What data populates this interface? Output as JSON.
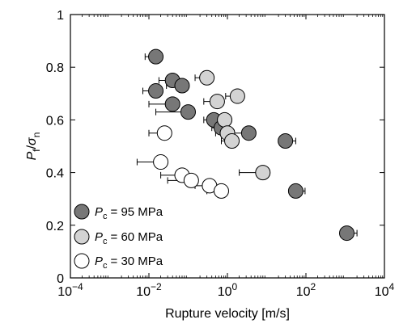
{
  "chart_data": {
    "type": "scatter",
    "xlabel": "Rupture velocity [m/s]",
    "ylabel": {
      "main": "P",
      "sub1": "f",
      "sep": "/",
      "sigma": "σ",
      "sub2": "n"
    },
    "x_scale": "log",
    "xlim": [
      0.0001,
      10000
    ],
    "ylim": [
      0,
      1
    ],
    "x_ticks": [
      {
        "value": 0.0001,
        "base": "10",
        "exp": "−4"
      },
      {
        "value": 0.01,
        "base": "10",
        "exp": "−2"
      },
      {
        "value": 1,
        "base": "10",
        "exp": "0"
      },
      {
        "value": 100,
        "base": "10",
        "exp": "2"
      },
      {
        "value": 10000,
        "base": "10",
        "exp": "4"
      }
    ],
    "y_ticks": [
      "0",
      "0.2",
      "0.4",
      "0.6",
      "0.8",
      "1"
    ],
    "grid": false,
    "legend_position": "bottom-left",
    "series": [
      {
        "name": "= 95 MPa",
        "legend_prefix": "P",
        "legend_sub": "c",
        "color": "#777777",
        "points": [
          {
            "x": 0.015,
            "y": 0.84,
            "x_err_low": 0.007
          },
          {
            "x": 0.015,
            "y": 0.71,
            "x_err_low": 0.008
          },
          {
            "x": 0.04,
            "y": 0.75,
            "x_err_low": 0.022
          },
          {
            "x": 0.07,
            "y": 0.73,
            "x_err_low": 0.042
          },
          {
            "x": 0.04,
            "y": 0.66,
            "x_err_low": 0.03
          },
          {
            "x": 0.1,
            "y": 0.63,
            "x_err_low": 0.085
          },
          {
            "x": 0.45,
            "y": 0.6,
            "x_err_low": 0.2
          },
          {
            "x": 0.7,
            "y": 0.57,
            "x_err_low": 0.3
          },
          {
            "x": 3.5,
            "y": 0.55,
            "x_err_low": 2.0
          },
          {
            "x": 30,
            "y": 0.52,
            "x_err_high": 25
          },
          {
            "x": 55,
            "y": 0.33,
            "x_err_high": 40
          },
          {
            "x": 1100,
            "y": 0.17,
            "x_err_high": 900
          }
        ]
      },
      {
        "name": "= 60 MPa",
        "legend_prefix": "P",
        "legend_sub": "c",
        "color": "#d3d3d3",
        "points": [
          {
            "x": 0.3,
            "y": 0.76,
            "x_err_low": 0.15
          },
          {
            "x": 0.55,
            "y": 0.67,
            "x_err_low": 0.3
          },
          {
            "x": 1.8,
            "y": 0.69,
            "x_err_low": 0.9
          },
          {
            "x": 0.85,
            "y": 0.6,
            "x_err_low": 0.4
          },
          {
            "x": 1.0,
            "y": 0.55,
            "x_err_low": 0.5
          },
          {
            "x": 1.3,
            "y": 0.52,
            "x_err_low": 0.6
          },
          {
            "x": 8,
            "y": 0.4,
            "x_err_low": 6
          }
        ]
      },
      {
        "name": "= 30 MPa",
        "legend_prefix": "P",
        "legend_sub": "c",
        "color": "#ffffff",
        "points": [
          {
            "x": 0.025,
            "y": 0.55,
            "x_err_low": 0.015
          },
          {
            "x": 0.02,
            "y": 0.44,
            "x_err_low": 0.015
          },
          {
            "x": 0.07,
            "y": 0.39,
            "x_err_low": 0.05
          },
          {
            "x": 0.12,
            "y": 0.37,
            "x_err_low": 0.09
          },
          {
            "x": 0.35,
            "y": 0.35,
            "x_err_low": 0.2
          },
          {
            "x": 0.7,
            "y": 0.33,
            "x_err_low": 0.4
          }
        ]
      }
    ]
  }
}
